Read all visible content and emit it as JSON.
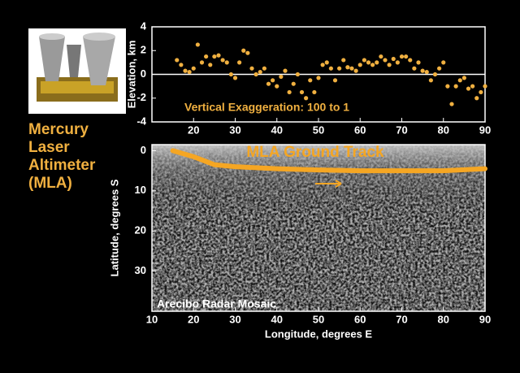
{
  "side_label": [
    "Mercury",
    "Laser",
    "Altimeter",
    "(MLA)"
  ],
  "chart_data": [
    {
      "type": "scatter",
      "y_label": "Elevation, km",
      "annotation": "Vertical Exaggeration: 100 to 1",
      "x": [
        16,
        17,
        18,
        19,
        20,
        21,
        22,
        23,
        24,
        25,
        26,
        27,
        28,
        29,
        30,
        31,
        32,
        33,
        34,
        35,
        36,
        37,
        38,
        39,
        40,
        41,
        42,
        43,
        44,
        45,
        46,
        47,
        48,
        49,
        50,
        51,
        52,
        53,
        54,
        55,
        56,
        57,
        58,
        59,
        60,
        61,
        62,
        63,
        64,
        65,
        66,
        67,
        68,
        69,
        70,
        71,
        72,
        73,
        74,
        75,
        76,
        77,
        78,
        79,
        80,
        81,
        82,
        83,
        84,
        85,
        86,
        87,
        88,
        89,
        90
      ],
      "series": [
        {
          "color": "#f0b040",
          "values": [
            1.2,
            0.8,
            0.3,
            0.2,
            0.5,
            2.5,
            1.0,
            1.5,
            0.8,
            1.5,
            1.6,
            1.2,
            1.0,
            0.0,
            -0.3,
            1.0,
            2.0,
            1.8,
            0.5,
            0.0,
            0.2,
            0.5,
            -0.8,
            -0.5,
            -1.0,
            -0.2,
            0.3,
            -1.5,
            -0.8,
            0.0,
            -1.5,
            -2.0,
            -0.5,
            -1.5,
            -0.3,
            0.8,
            1.0,
            0.5,
            -0.5,
            0.5,
            1.2,
            0.6,
            0.5,
            0.3,
            0.8,
            1.2,
            1.0,
            0.8,
            1.0,
            1.5,
            1.2,
            0.8,
            1.3,
            1.0,
            1.5,
            1.5,
            1.2,
            0.5,
            1.0,
            0.3,
            0.2,
            -0.5,
            0.0,
            0.5,
            1.0,
            -1.0,
            -2.5,
            -1.0,
            -0.5,
            -0.3,
            -1.2,
            -1.0,
            -2.0,
            -1.5,
            -1.0
          ]
        }
      ],
      "xlim": [
        10,
        90
      ],
      "xticks": [
        20,
        30,
        40,
        50,
        60,
        70,
        80,
        90
      ],
      "ylim": [
        -4,
        4
      ],
      "yticks": [
        -4,
        -2,
        0,
        2,
        4
      ]
    },
    {
      "type": "line",
      "x_label": "Longitude, degrees E",
      "y_label": "Latitude, degrees S",
      "annotation": "Arecibo Radar Mosaic",
      "y_inverted": true,
      "x": [
        15,
        20,
        25,
        30,
        40,
        50,
        60,
        70,
        80,
        90
      ],
      "series": [
        {
          "name": "MLA Ground Track",
          "color": "#f5a623",
          "values": [
            0,
            1.5,
            3.5,
            4,
            4.5,
            4.8,
            5,
            5,
            5,
            4.5
          ]
        }
      ],
      "xlim": [
        10,
        90
      ],
      "xticks": [
        10,
        20,
        30,
        40,
        50,
        60,
        70,
        80,
        90
      ],
      "ylim": [
        -1.5,
        40
      ],
      "yticks": [
        0,
        10,
        20,
        30
      ]
    }
  ]
}
